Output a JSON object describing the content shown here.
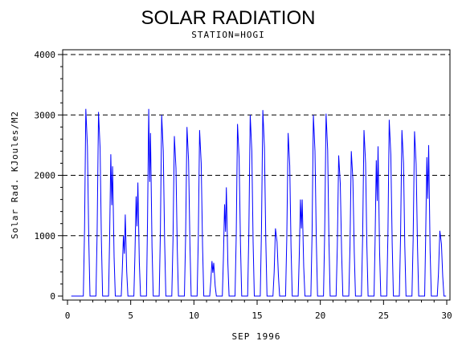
{
  "chart_data": {
    "type": "line",
    "title": "SOLAR RADIATION",
    "subtitle": "STATION=HOGI",
    "xlabel": "SEP 1996",
    "ylabel": "Solar Rad. KJoules/M2",
    "xlim": [
      0,
      30
    ],
    "ylim": [
      0,
      4000
    ],
    "x_ticks": [
      0,
      5,
      10,
      15,
      20,
      25,
      30
    ],
    "y_ticks": [
      0,
      1000,
      2000,
      3000,
      4000
    ],
    "grid": "horizontal-dashed",
    "series": [
      {
        "color": "#0000ff",
        "daily_peaks": [
          {
            "day": 1,
            "peaks": [
              3100
            ]
          },
          {
            "day": 2,
            "peaks": [
              3050
            ]
          },
          {
            "day": 3,
            "peaks": [
              2350,
              2150
            ]
          },
          {
            "day": 4,
            "peaks": [
              1000,
              1350
            ]
          },
          {
            "day": 5,
            "peaks": [
              1650,
              1880
            ]
          },
          {
            "day": 6,
            "peaks": [
              3100,
              2700
            ]
          },
          {
            "day": 7,
            "peaks": [
              3000
            ]
          },
          {
            "day": 8,
            "peaks": [
              2650
            ]
          },
          {
            "day": 9,
            "peaks": [
              2800
            ]
          },
          {
            "day": 10,
            "peaks": [
              2750
            ]
          },
          {
            "day": 11,
            "peaks": [
              580,
              550
            ]
          },
          {
            "day": 12,
            "peaks": [
              1520,
              1800
            ]
          },
          {
            "day": 13,
            "peaks": [
              2850
            ]
          },
          {
            "day": 14,
            "peaks": [
              3000
            ]
          },
          {
            "day": 15,
            "peaks": [
              3080
            ]
          },
          {
            "day": 16,
            "peaks": [
              1120
            ]
          },
          {
            "day": 17,
            "peaks": [
              2700
            ]
          },
          {
            "day": 18,
            "peaks": [
              1600,
              1600
            ]
          },
          {
            "day": 19,
            "peaks": [
              3000
            ]
          },
          {
            "day": 20,
            "peaks": [
              3020
            ]
          },
          {
            "day": 21,
            "peaks": [
              2330
            ]
          },
          {
            "day": 22,
            "peaks": [
              2400
            ]
          },
          {
            "day": 23,
            "peaks": [
              2750
            ]
          },
          {
            "day": 24,
            "peaks": [
              2250,
              2480
            ]
          },
          {
            "day": 25,
            "peaks": [
              2920
            ]
          },
          {
            "day": 26,
            "peaks": [
              2750
            ]
          },
          {
            "day": 27,
            "peaks": [
              2730
            ]
          },
          {
            "day": 28,
            "peaks": [
              2300,
              2500
            ]
          },
          {
            "day": 29,
            "peaks": [
              1080
            ]
          }
        ]
      }
    ]
  }
}
